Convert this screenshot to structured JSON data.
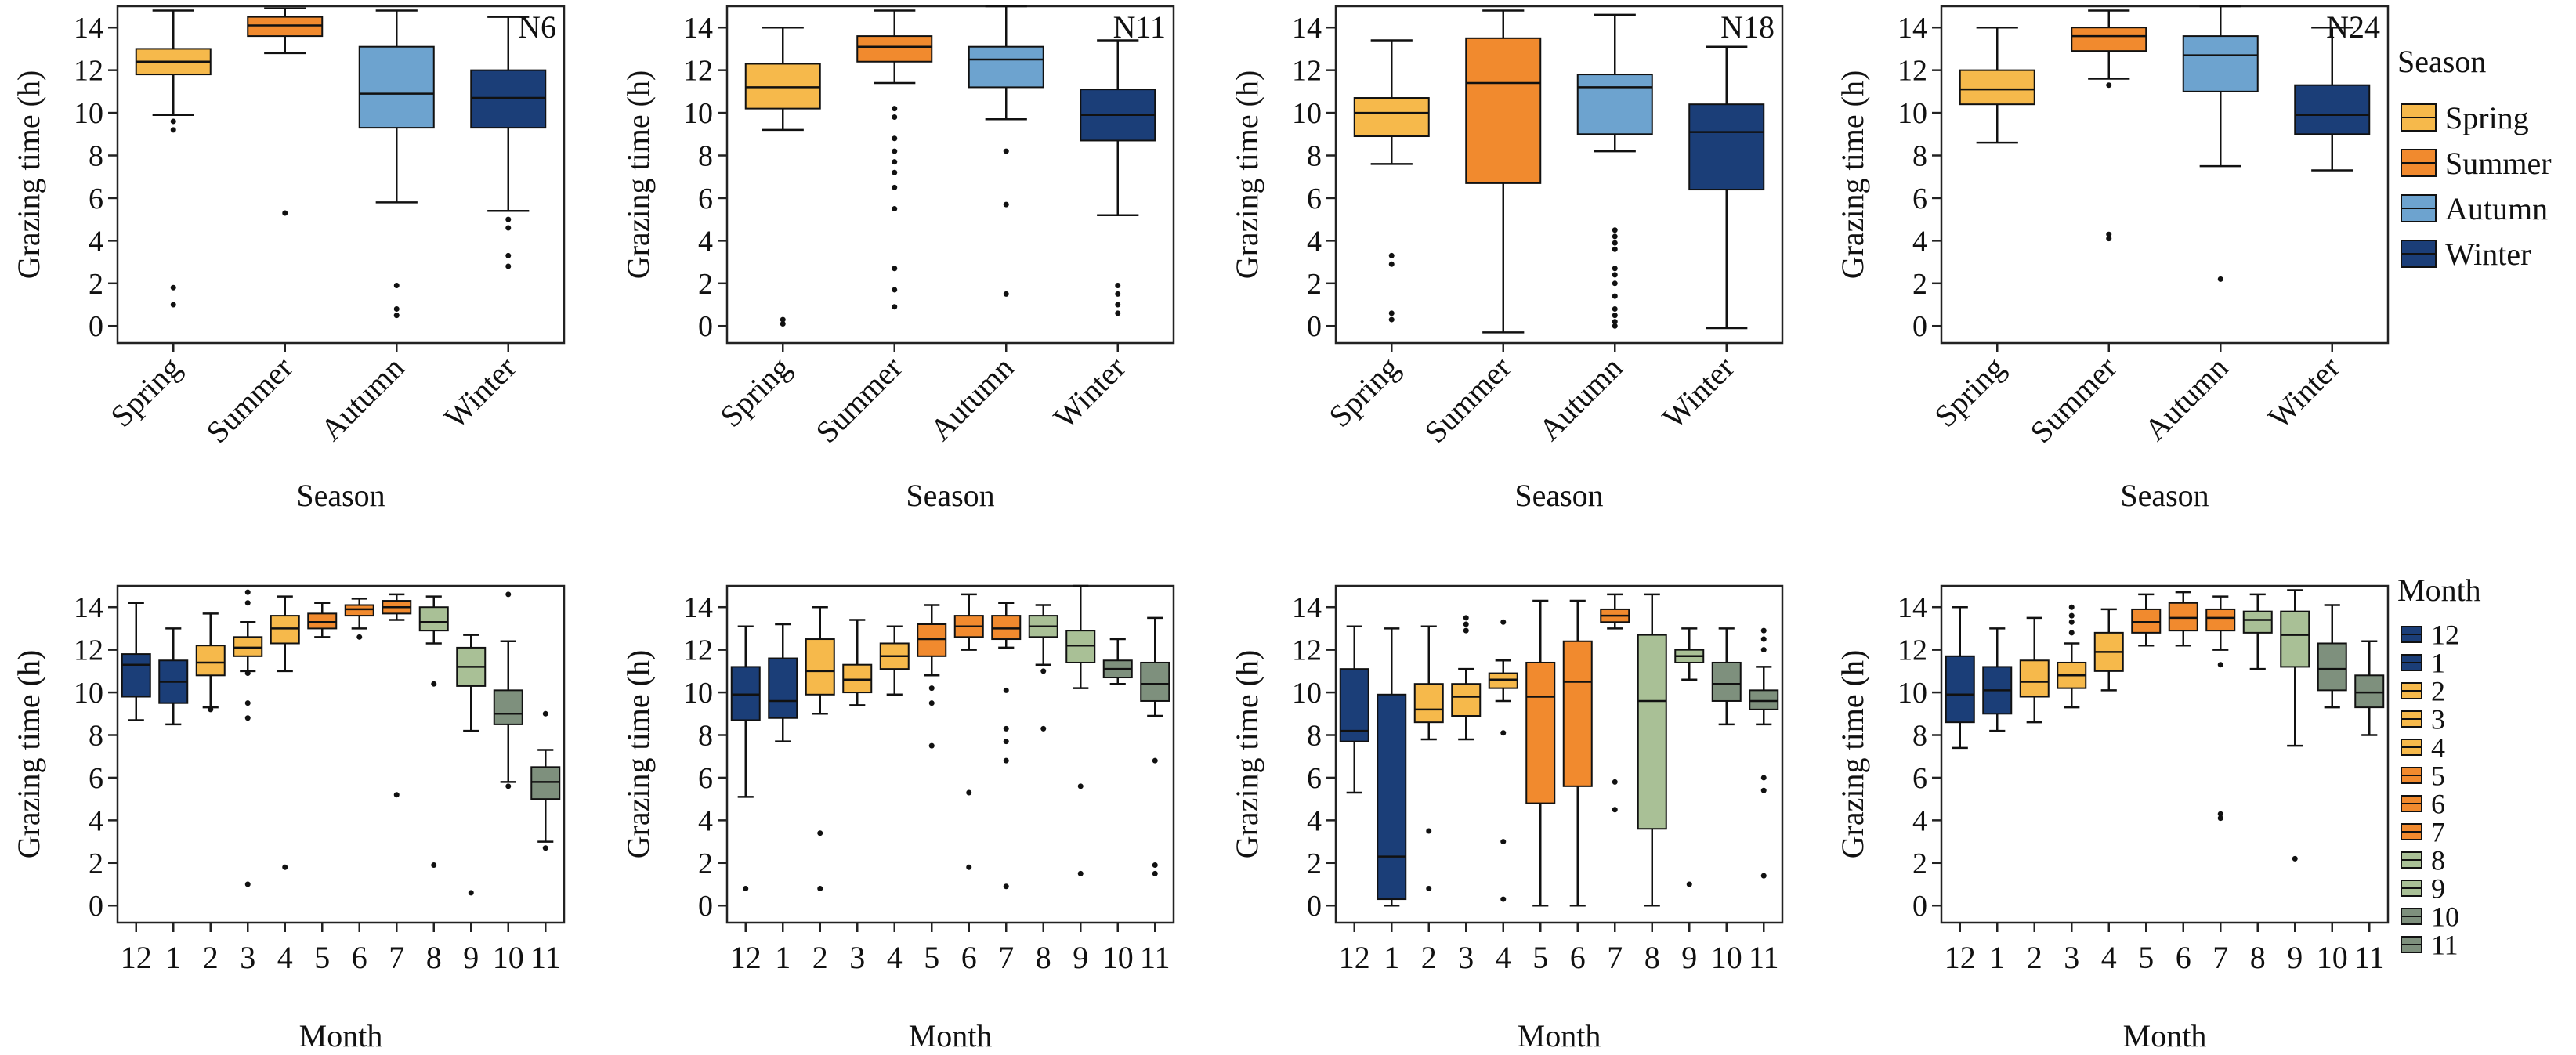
{
  "ylabel": "Grazing time (h)",
  "season_xlabel": "Season",
  "month_xlabel": "Month",
  "legend_season": {
    "title": "Season",
    "items": [
      {
        "label": "Spring",
        "color": "#F6B94B"
      },
      {
        "label": "Summer",
        "color": "#F18A2E"
      },
      {
        "label": "Autumn",
        "color": "#6DA3CF"
      },
      {
        "label": "Winter",
        "color": "#1B3E78"
      }
    ]
  },
  "legend_month": {
    "title": "Month",
    "items": [
      {
        "label": "12",
        "color": "#1B3E78"
      },
      {
        "label": "1",
        "color": "#1B3E78"
      },
      {
        "label": "2",
        "color": "#F6B94B"
      },
      {
        "label": "3",
        "color": "#F6B94B"
      },
      {
        "label": "4",
        "color": "#F6B94B"
      },
      {
        "label": "5",
        "color": "#F18A2E"
      },
      {
        "label": "6",
        "color": "#F18A2E"
      },
      {
        "label": "7",
        "color": "#F18A2E"
      },
      {
        "label": "8",
        "color": "#A9C096"
      },
      {
        "label": "9",
        "color": "#A9C096"
      },
      {
        "label": "10",
        "color": "#7E907D"
      },
      {
        "label": "11",
        "color": "#7E907D"
      }
    ]
  },
  "chart_data": [
    {
      "type": "boxplot",
      "panel": "N6",
      "ylabel": "Grazing time (h)",
      "xlabel": "Season",
      "ylim": [
        -0.8,
        15
      ],
      "categories": [
        "Spring",
        "Summer",
        "Autumn",
        "Winter"
      ],
      "colors": [
        "#F6B94B",
        "#F18A2E",
        "#6DA3CF",
        "#1B3E78"
      ],
      "boxes": [
        {
          "whislo": 9.9,
          "q1": 11.8,
          "med": 12.4,
          "q3": 13.0,
          "whishi": 14.8,
          "fliers": [
            9.6,
            9.2,
            1.8,
            1.0
          ]
        },
        {
          "whislo": 12.8,
          "q1": 13.6,
          "med": 14.1,
          "q3": 14.5,
          "whishi": 14.9,
          "fliers": [
            5.3
          ]
        },
        {
          "whislo": 5.8,
          "q1": 9.3,
          "med": 10.9,
          "q3": 13.1,
          "whishi": 14.8,
          "fliers": [
            1.9,
            0.8,
            0.5
          ]
        },
        {
          "whislo": 5.4,
          "q1": 9.3,
          "med": 10.7,
          "q3": 12.0,
          "whishi": 14.5,
          "fliers": [
            5.0,
            4.6,
            3.3,
            2.8
          ]
        }
      ]
    },
    {
      "type": "boxplot",
      "panel": "N11",
      "ylabel": "Grazing time (h)",
      "xlabel": "Season",
      "ylim": [
        -0.8,
        15
      ],
      "categories": [
        "Spring",
        "Summer",
        "Autumn",
        "Winter"
      ],
      "colors": [
        "#F6B94B",
        "#F18A2E",
        "#6DA3CF",
        "#1B3E78"
      ],
      "boxes": [
        {
          "whislo": 9.2,
          "q1": 10.2,
          "med": 11.2,
          "q3": 12.3,
          "whishi": 14.0,
          "fliers": [
            0.3,
            0.1
          ]
        },
        {
          "whislo": 11.4,
          "q1": 12.4,
          "med": 13.1,
          "q3": 13.6,
          "whishi": 14.8,
          "fliers": [
            10.2,
            9.8,
            8.8,
            8.2,
            7.7,
            7.2,
            6.5,
            5.5,
            2.7,
            1.7,
            0.9
          ]
        },
        {
          "whislo": 9.7,
          "q1": 11.2,
          "med": 12.5,
          "q3": 13.1,
          "whishi": 15.0,
          "fliers": [
            8.2,
            5.7,
            1.5
          ]
        },
        {
          "whislo": 5.2,
          "q1": 8.7,
          "med": 9.9,
          "q3": 11.1,
          "whishi": 13.4,
          "fliers": [
            1.9,
            1.5,
            1.0,
            0.6
          ]
        }
      ]
    },
    {
      "type": "boxplot",
      "panel": "N18",
      "ylabel": "Grazing time (h)",
      "xlabel": "Season",
      "ylim": [
        -0.8,
        15
      ],
      "categories": [
        "Spring",
        "Summer",
        "Autumn",
        "Winter"
      ],
      "colors": [
        "#F6B94B",
        "#F18A2E",
        "#6DA3CF",
        "#1B3E78"
      ],
      "boxes": [
        {
          "whislo": 7.6,
          "q1": 8.9,
          "med": 10.0,
          "q3": 10.7,
          "whishi": 13.4,
          "fliers": [
            3.3,
            2.9,
            0.6,
            0.3
          ]
        },
        {
          "whislo": -0.3,
          "q1": 6.7,
          "med": 11.4,
          "q3": 13.5,
          "whishi": 14.8,
          "fliers": []
        },
        {
          "whislo": 8.2,
          "q1": 9.0,
          "med": 11.2,
          "q3": 11.8,
          "whishi": 14.6,
          "fliers": [
            4.5,
            4.2,
            3.9,
            3.6,
            2.7,
            2.4,
            2.0,
            1.4,
            0.8,
            0.5,
            0.2,
            0.0
          ]
        },
        {
          "whislo": -0.1,
          "q1": 6.4,
          "med": 9.1,
          "q3": 10.4,
          "whishi": 13.1,
          "fliers": []
        }
      ]
    },
    {
      "type": "boxplot",
      "panel": "N24",
      "ylabel": "Grazing time (h)",
      "xlabel": "Season",
      "ylim": [
        -0.8,
        15
      ],
      "categories": [
        "Spring",
        "Summer",
        "Autumn",
        "Winter"
      ],
      "colors": [
        "#F6B94B",
        "#F18A2E",
        "#6DA3CF",
        "#1B3E78"
      ],
      "boxes": [
        {
          "whislo": 8.6,
          "q1": 10.4,
          "med": 11.1,
          "q3": 12.0,
          "whishi": 14.0,
          "fliers": []
        },
        {
          "whislo": 11.6,
          "q1": 12.9,
          "med": 13.6,
          "q3": 14.0,
          "whishi": 14.8,
          "fliers": [
            11.3,
            4.3,
            4.1
          ]
        },
        {
          "whislo": 7.5,
          "q1": 11.0,
          "med": 12.7,
          "q3": 13.6,
          "whishi": 15.0,
          "fliers": [
            2.2
          ]
        },
        {
          "whislo": 7.3,
          "q1": 9.0,
          "med": 9.9,
          "q3": 11.3,
          "whishi": 14.0,
          "fliers": []
        }
      ]
    },
    {
      "type": "boxplot",
      "panel": "N6",
      "ylabel": "Grazing time (h)",
      "xlabel": "Month",
      "ylim": [
        -0.8,
        15
      ],
      "categories": [
        "12",
        "1",
        "2",
        "3",
        "4",
        "5",
        "6",
        "7",
        "8",
        "9",
        "10",
        "11"
      ],
      "colors": [
        "#1B3E78",
        "#1B3E78",
        "#F6B94B",
        "#F6B94B",
        "#F6B94B",
        "#F18A2E",
        "#F18A2E",
        "#F18A2E",
        "#A9C096",
        "#A9C096",
        "#7E907D",
        "#7E907D"
      ],
      "boxes": [
        {
          "whislo": 8.7,
          "q1": 9.8,
          "med": 11.3,
          "q3": 11.8,
          "whishi": 14.2,
          "fliers": []
        },
        {
          "whislo": 8.5,
          "q1": 9.5,
          "med": 10.5,
          "q3": 11.5,
          "whishi": 13.0,
          "fliers": []
        },
        {
          "whislo": 9.3,
          "q1": 10.8,
          "med": 11.4,
          "q3": 12.2,
          "whishi": 13.7,
          "fliers": [
            9.2
          ]
        },
        {
          "whislo": 11.0,
          "q1": 11.7,
          "med": 12.1,
          "q3": 12.6,
          "whishi": 13.3,
          "fliers": [
            14.7,
            14.2,
            10.9,
            9.5,
            8.8,
            1.0
          ]
        },
        {
          "whislo": 11.0,
          "q1": 12.3,
          "med": 13.0,
          "q3": 13.6,
          "whishi": 14.5,
          "fliers": [
            1.8
          ]
        },
        {
          "whislo": 12.6,
          "q1": 13.0,
          "med": 13.3,
          "q3": 13.7,
          "whishi": 14.2,
          "fliers": []
        },
        {
          "whislo": 13.0,
          "q1": 13.6,
          "med": 13.9,
          "q3": 14.1,
          "whishi": 14.4,
          "fliers": [
            12.6
          ]
        },
        {
          "whislo": 13.4,
          "q1": 13.7,
          "med": 14.0,
          "q3": 14.3,
          "whishi": 14.6,
          "fliers": [
            5.2
          ]
        },
        {
          "whislo": 12.3,
          "q1": 12.9,
          "med": 13.3,
          "q3": 14.0,
          "whishi": 14.5,
          "fliers": [
            10.4,
            1.9
          ]
        },
        {
          "whislo": 8.2,
          "q1": 10.3,
          "med": 11.2,
          "q3": 12.1,
          "whishi": 12.7,
          "fliers": [
            0.6
          ]
        },
        {
          "whislo": 5.8,
          "q1": 8.5,
          "med": 9.0,
          "q3": 10.1,
          "whishi": 12.4,
          "fliers": [
            14.6,
            5.6
          ]
        },
        {
          "whislo": 3.0,
          "q1": 5.0,
          "med": 5.8,
          "q3": 6.5,
          "whishi": 7.3,
          "fliers": [
            9.0,
            2.7
          ]
        }
      ]
    },
    {
      "type": "boxplot",
      "panel": "N11",
      "ylabel": "Grazing time (h)",
      "xlabel": "Month",
      "ylim": [
        -0.8,
        15
      ],
      "categories": [
        "12",
        "1",
        "2",
        "3",
        "4",
        "5",
        "6",
        "7",
        "8",
        "9",
        "10",
        "11"
      ],
      "colors": [
        "#1B3E78",
        "#1B3E78",
        "#F6B94B",
        "#F6B94B",
        "#F6B94B",
        "#F18A2E",
        "#F18A2E",
        "#F18A2E",
        "#A9C096",
        "#A9C096",
        "#7E907D",
        "#7E907D"
      ],
      "boxes": [
        {
          "whislo": 5.1,
          "q1": 8.7,
          "med": 9.9,
          "q3": 11.2,
          "whishi": 13.1,
          "fliers": [
            0.8
          ]
        },
        {
          "whislo": 7.7,
          "q1": 8.8,
          "med": 9.6,
          "q3": 11.6,
          "whishi": 13.2,
          "fliers": []
        },
        {
          "whislo": 9.0,
          "q1": 9.9,
          "med": 11.0,
          "q3": 12.5,
          "whishi": 14.0,
          "fliers": [
            3.4,
            0.8
          ]
        },
        {
          "whislo": 9.4,
          "q1": 10.0,
          "med": 10.6,
          "q3": 11.3,
          "whishi": 13.4,
          "fliers": []
        },
        {
          "whislo": 9.9,
          "q1": 11.1,
          "med": 11.7,
          "q3": 12.3,
          "whishi": 13.1,
          "fliers": []
        },
        {
          "whislo": 10.8,
          "q1": 11.7,
          "med": 12.5,
          "q3": 13.2,
          "whishi": 14.1,
          "fliers": [
            10.2,
            9.5,
            7.5
          ]
        },
        {
          "whislo": 12.0,
          "q1": 12.6,
          "med": 13.1,
          "q3": 13.6,
          "whishi": 14.6,
          "fliers": [
            5.3,
            1.8
          ]
        },
        {
          "whislo": 12.1,
          "q1": 12.5,
          "med": 13.0,
          "q3": 13.6,
          "whishi": 14.2,
          "fliers": [
            10.1,
            8.3,
            7.7,
            6.8,
            0.9
          ]
        },
        {
          "whislo": 11.3,
          "q1": 12.6,
          "med": 13.1,
          "q3": 13.6,
          "whishi": 14.1,
          "fliers": [
            11.0,
            8.3
          ]
        },
        {
          "whislo": 10.2,
          "q1": 11.4,
          "med": 12.2,
          "q3": 12.9,
          "whishi": 15.0,
          "fliers": [
            5.6,
            1.5
          ]
        },
        {
          "whislo": 10.4,
          "q1": 10.7,
          "med": 11.1,
          "q3": 11.5,
          "whishi": 12.5,
          "fliers": []
        },
        {
          "whislo": 8.9,
          "q1": 9.6,
          "med": 10.4,
          "q3": 11.4,
          "whishi": 13.5,
          "fliers": [
            6.8,
            1.9,
            1.5
          ]
        }
      ]
    },
    {
      "type": "boxplot",
      "panel": "N18",
      "ylabel": "Grazing time (h)",
      "xlabel": "Month",
      "ylim": [
        -0.8,
        15
      ],
      "categories": [
        "12",
        "1",
        "2",
        "3",
        "4",
        "5",
        "6",
        "7",
        "8",
        "9",
        "10",
        "11"
      ],
      "colors": [
        "#1B3E78",
        "#1B3E78",
        "#F6B94B",
        "#F6B94B",
        "#F6B94B",
        "#F18A2E",
        "#F18A2E",
        "#F18A2E",
        "#A9C096",
        "#A9C096",
        "#7E907D",
        "#7E907D"
      ],
      "boxes": [
        {
          "whislo": 5.3,
          "q1": 7.7,
          "med": 8.2,
          "q3": 11.1,
          "whishi": 13.1,
          "fliers": []
        },
        {
          "whislo": 0.0,
          "q1": 0.3,
          "med": 2.3,
          "q3": 9.9,
          "whishi": 13.0,
          "fliers": []
        },
        {
          "whislo": 7.8,
          "q1": 8.6,
          "med": 9.2,
          "q3": 10.4,
          "whishi": 13.1,
          "fliers": [
            3.5,
            0.8
          ]
        },
        {
          "whislo": 7.8,
          "q1": 8.9,
          "med": 9.8,
          "q3": 10.4,
          "whishi": 11.1,
          "fliers": [
            13.5,
            13.2,
            12.9
          ]
        },
        {
          "whislo": 9.6,
          "q1": 10.2,
          "med": 10.6,
          "q3": 10.9,
          "whishi": 11.5,
          "fliers": [
            13.3,
            8.1,
            3.0,
            0.3
          ]
        },
        {
          "whislo": 0.0,
          "q1": 4.8,
          "med": 9.8,
          "q3": 11.4,
          "whishi": 14.3,
          "fliers": []
        },
        {
          "whislo": 0.0,
          "q1": 5.6,
          "med": 10.5,
          "q3": 12.4,
          "whishi": 14.3,
          "fliers": []
        },
        {
          "whislo": 13.0,
          "q1": 13.3,
          "med": 13.6,
          "q3": 13.9,
          "whishi": 14.6,
          "fliers": [
            5.8,
            4.5
          ]
        },
        {
          "whislo": 0.0,
          "q1": 3.6,
          "med": 9.6,
          "q3": 12.7,
          "whishi": 14.6,
          "fliers": []
        },
        {
          "whislo": 10.6,
          "q1": 11.4,
          "med": 11.7,
          "q3": 12.0,
          "whishi": 13.0,
          "fliers": [
            1.0
          ]
        },
        {
          "whislo": 8.5,
          "q1": 9.6,
          "med": 10.4,
          "q3": 11.4,
          "whishi": 13.0,
          "fliers": []
        },
        {
          "whislo": 8.5,
          "q1": 9.2,
          "med": 9.6,
          "q3": 10.1,
          "whishi": 11.2,
          "fliers": [
            12.9,
            12.5,
            12.0,
            6.0,
            5.4,
            1.4
          ]
        }
      ]
    },
    {
      "type": "boxplot",
      "panel": "N24",
      "ylabel": "Grazing time (h)",
      "xlabel": "Month",
      "ylim": [
        -0.8,
        15
      ],
      "categories": [
        "12",
        "1",
        "2",
        "3",
        "4",
        "5",
        "6",
        "7",
        "8",
        "9",
        "10",
        "11"
      ],
      "colors": [
        "#1B3E78",
        "#1B3E78",
        "#F6B94B",
        "#F6B94B",
        "#F6B94B",
        "#F18A2E",
        "#F18A2E",
        "#F18A2E",
        "#A9C096",
        "#A9C096",
        "#7E907D",
        "#7E907D"
      ],
      "boxes": [
        {
          "whislo": 7.4,
          "q1": 8.6,
          "med": 9.9,
          "q3": 11.7,
          "whishi": 14.0,
          "fliers": []
        },
        {
          "whislo": 8.2,
          "q1": 9.0,
          "med": 10.1,
          "q3": 11.2,
          "whishi": 13.0,
          "fliers": []
        },
        {
          "whislo": 8.6,
          "q1": 9.8,
          "med": 10.5,
          "q3": 11.5,
          "whishi": 13.5,
          "fliers": []
        },
        {
          "whislo": 9.3,
          "q1": 10.2,
          "med": 10.8,
          "q3": 11.4,
          "whishi": 12.3,
          "fliers": [
            14.0,
            13.6,
            13.3,
            12.8
          ]
        },
        {
          "whislo": 10.1,
          "q1": 11.0,
          "med": 11.9,
          "q3": 12.8,
          "whishi": 13.9,
          "fliers": []
        },
        {
          "whislo": 12.2,
          "q1": 12.8,
          "med": 13.3,
          "q3": 13.9,
          "whishi": 14.6,
          "fliers": []
        },
        {
          "whislo": 12.2,
          "q1": 12.9,
          "med": 13.5,
          "q3": 14.2,
          "whishi": 14.7,
          "fliers": []
        },
        {
          "whislo": 12.0,
          "q1": 12.9,
          "med": 13.5,
          "q3": 13.9,
          "whishi": 14.5,
          "fliers": [
            11.3,
            4.3,
            4.1
          ]
        },
        {
          "whislo": 11.1,
          "q1": 12.8,
          "med": 13.4,
          "q3": 13.8,
          "whishi": 14.6,
          "fliers": []
        },
        {
          "whislo": 7.5,
          "q1": 11.2,
          "med": 12.7,
          "q3": 13.8,
          "whishi": 14.8,
          "fliers": [
            2.2
          ]
        },
        {
          "whislo": 9.3,
          "q1": 10.1,
          "med": 11.1,
          "q3": 12.3,
          "whishi": 14.1,
          "fliers": []
        },
        {
          "whislo": 8.0,
          "q1": 9.3,
          "med": 10.0,
          "q3": 10.8,
          "whishi": 12.4,
          "fliers": []
        }
      ]
    }
  ]
}
